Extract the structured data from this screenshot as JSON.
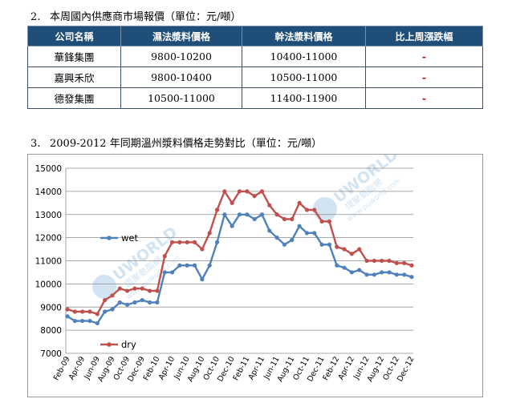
{
  "section2": {
    "number": "2.",
    "title": "本周國內供應商市場報價（單位：元/噸）",
    "table": {
      "headers": [
        "公司名稱",
        "濕法漿料價格",
        "幹法漿料價格",
        "比上周漲跌幅"
      ],
      "rows": [
        [
          "華鋒集團",
          "9800-10200",
          "10400-11000",
          "-"
        ],
        [
          "嘉興禾欣",
          "9800-10400",
          "10500-11000",
          "-"
        ],
        [
          "德發集團",
          "10500-11000",
          "11400-11900",
          "-"
        ]
      ]
    }
  },
  "section3": {
    "number": "3.",
    "title": "2009-2012 年同期溫州漿料價格走勢對比（單位：元/噸）"
  },
  "watermark": {
    "brand": "UWORLD",
    "cn": "環聚氨酯網",
    "url": "www.puworld.com"
  },
  "chart_data": {
    "type": "line",
    "x": [
      "Feb-09",
      "Mar-09",
      "Apr-09",
      "May-09",
      "Jun-09",
      "Jul-09",
      "Aug-09",
      "Sep-09",
      "Oct-09",
      "Nov-09",
      "Dec-09",
      "Jan-10",
      "Feb-10",
      "Mar-10",
      "Apr-10",
      "May-10",
      "Jun-10",
      "Jul-10",
      "Aug-10",
      "Sep-10",
      "Oct-10",
      "Nov-10",
      "Dec-10",
      "Jan-11",
      "Feb-11",
      "Mar-11",
      "Apr-11",
      "May-11",
      "Jun-11",
      "Jul-11",
      "Aug-11",
      "Sep-11",
      "Oct-11",
      "Nov-11",
      "Dec-11",
      "Jan-12",
      "Feb-12",
      "Mar-12",
      "Apr-12",
      "May-12",
      "Jun-12",
      "Jul-12",
      "Aug-12",
      "Sep-12",
      "Oct-12",
      "Nov-12",
      "Dec-12"
    ],
    "xtick_labels": [
      "Feb-09",
      "Apr-09",
      "Jun-09",
      "Aug-09",
      "Oct-09",
      "Dec-09",
      "Feb-10",
      "Apr-10",
      "Jun-10",
      "Aug-10",
      "Oct-10",
      "Dec-10",
      "Feb-11",
      "Apr-11",
      "Jun-11",
      "Aug-11",
      "Oct-11",
      "Dec-11",
      "Feb-12",
      "Apr-12",
      "Jun-12",
      "Aug-12",
      "Oct-12",
      "Dec-12"
    ],
    "series": [
      {
        "name": "wet",
        "color": "#4f81bd",
        "values": [
          8600,
          8400,
          8400,
          8400,
          8300,
          8800,
          8900,
          9200,
          9100,
          9200,
          9300,
          9200,
          9200,
          10500,
          10500,
          10800,
          10800,
          10800,
          10200,
          10800,
          11800,
          13000,
          12500,
          13000,
          13000,
          12800,
          13000,
          12300,
          12000,
          11700,
          11900,
          12500,
          12200,
          12200,
          11700,
          11700,
          10800,
          10700,
          10500,
          10600,
          10400,
          10400,
          10500,
          10500,
          10400,
          10400,
          10300
        ]
      },
      {
        "name": "dry",
        "color": "#c0504d",
        "values": [
          8900,
          8800,
          8800,
          8800,
          8700,
          9300,
          9500,
          9800,
          9700,
          9800,
          9800,
          9700,
          9700,
          11200,
          11800,
          11800,
          11800,
          11800,
          11500,
          12200,
          13200,
          14000,
          13500,
          14000,
          14000,
          13800,
          14000,
          13400,
          13000,
          12800,
          12800,
          13500,
          13200,
          13200,
          12700,
          12700,
          11600,
          11500,
          11300,
          11500,
          11000,
          11000,
          11000,
          11000,
          10900,
          10900,
          10800
        ]
      }
    ],
    "ylim": [
      7000,
      15000
    ],
    "yticks": [
      7000,
      8000,
      9000,
      10000,
      11000,
      12000,
      13000,
      14000,
      15000
    ],
    "grid": true,
    "legend_labels": [
      "wet",
      "dry"
    ]
  }
}
